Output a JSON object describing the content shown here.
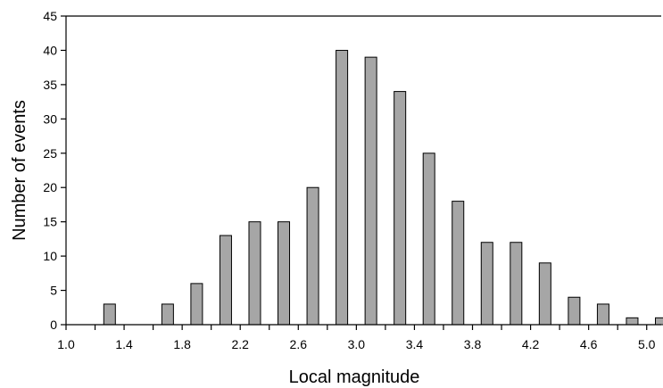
{
  "chart_data": {
    "type": "bar",
    "xlabel": "Local magnitude",
    "ylabel": "Number of events",
    "ylim": [
      0,
      45
    ],
    "xlim": [
      1.0,
      5.1
    ],
    "yticks": [
      0,
      5,
      10,
      15,
      20,
      25,
      30,
      35,
      40,
      45
    ],
    "xticks": [
      "1.0",
      "1.4",
      "1.8",
      "2.2",
      "2.6",
      "3.0",
      "3.4",
      "3.8",
      "4.2",
      "4.6",
      "5.0"
    ],
    "bin_width": 0.2,
    "x": [
      1.3,
      1.7,
      1.9,
      2.1,
      2.3,
      2.5,
      2.7,
      2.9,
      3.1,
      3.3,
      3.5,
      3.7,
      3.9,
      4.1,
      4.3,
      4.5,
      4.7,
      4.9,
      5.1
    ],
    "values": [
      3,
      3,
      6,
      13,
      15,
      15,
      20,
      40,
      39,
      34,
      25,
      18,
      12,
      12,
      9,
      4,
      3,
      1,
      1
    ],
    "bar_color": "#a6a6a6",
    "grid": false,
    "legend": "none"
  }
}
